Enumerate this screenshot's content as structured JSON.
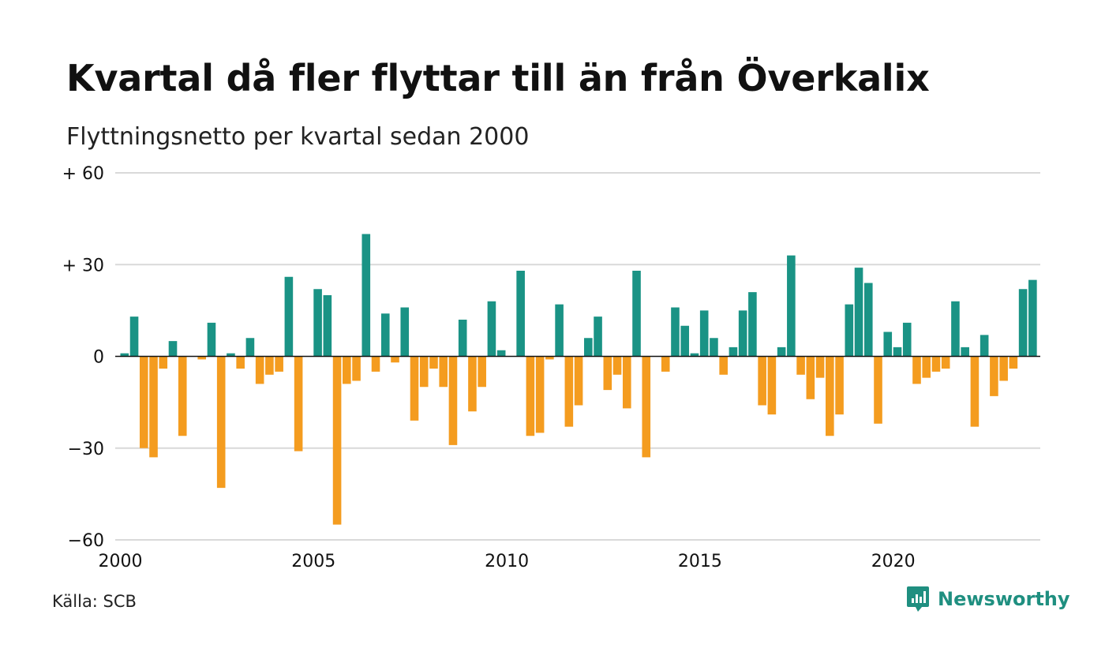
{
  "title": "Kvartal då fler flyttar till än från Överkalix",
  "subtitle": "Flyttningsnetto per kvartal sedan 2000",
  "source": "Källa: SCB",
  "brand": {
    "name": "Newsworthy",
    "icon": "newsworthy-logo-icon"
  },
  "colors": {
    "positive": "#1a9385",
    "negative": "#f49c1f",
    "grid": "#d9d9d9",
    "baseline": "#111111",
    "brand": "#1f8f80"
  },
  "chart_data": {
    "type": "bar",
    "title": "Kvartal då fler flyttar till än från Överkalix",
    "subtitle": "Flyttningsnetto per kvartal sedan 2000",
    "ylim": [
      -60,
      60
    ],
    "y_ticks": [
      {
        "value": 60,
        "label": "+ 60"
      },
      {
        "value": 30,
        "label": "+ 30"
      },
      {
        "value": 0,
        "label": "0"
      },
      {
        "value": -30,
        "label": "−30"
      },
      {
        "value": -60,
        "label": "−60"
      }
    ],
    "x_ticks": [
      {
        "value": 2000,
        "label": "2000"
      },
      {
        "value": 2005,
        "label": "2005"
      },
      {
        "value": 2010,
        "label": "2010"
      },
      {
        "value": 2015,
        "label": "2015"
      },
      {
        "value": 2020,
        "label": "2020"
      }
    ],
    "grid": true,
    "start_year": 2000,
    "quarters_per_year": 4,
    "values": [
      1,
      13,
      -30,
      -33,
      -4,
      5,
      -26,
      0,
      -1,
      11,
      -43,
      1,
      -4,
      6,
      -9,
      -6,
      -5,
      26,
      -31,
      0,
      22,
      20,
      -55,
      -9,
      -8,
      40,
      -5,
      14,
      -2,
      16,
      -21,
      -10,
      -4,
      -10,
      -29,
      12,
      -18,
      -10,
      18,
      2,
      0,
      28,
      -26,
      -25,
      -1,
      17,
      -23,
      -16,
      6,
      13,
      -11,
      -6,
      -17,
      28,
      -33,
      0,
      -5,
      16,
      10,
      1,
      15,
      6,
      -6,
      3,
      15,
      21,
      -16,
      -19,
      3,
      33,
      -6,
      -14,
      -7,
      -26,
      -19,
      17,
      29,
      24,
      -22,
      8,
      3,
      11,
      -9,
      -7,
      -5,
      -4,
      18,
      3,
      -23,
      7,
      -13,
      -8,
      -4,
      22,
      25
    ]
  }
}
